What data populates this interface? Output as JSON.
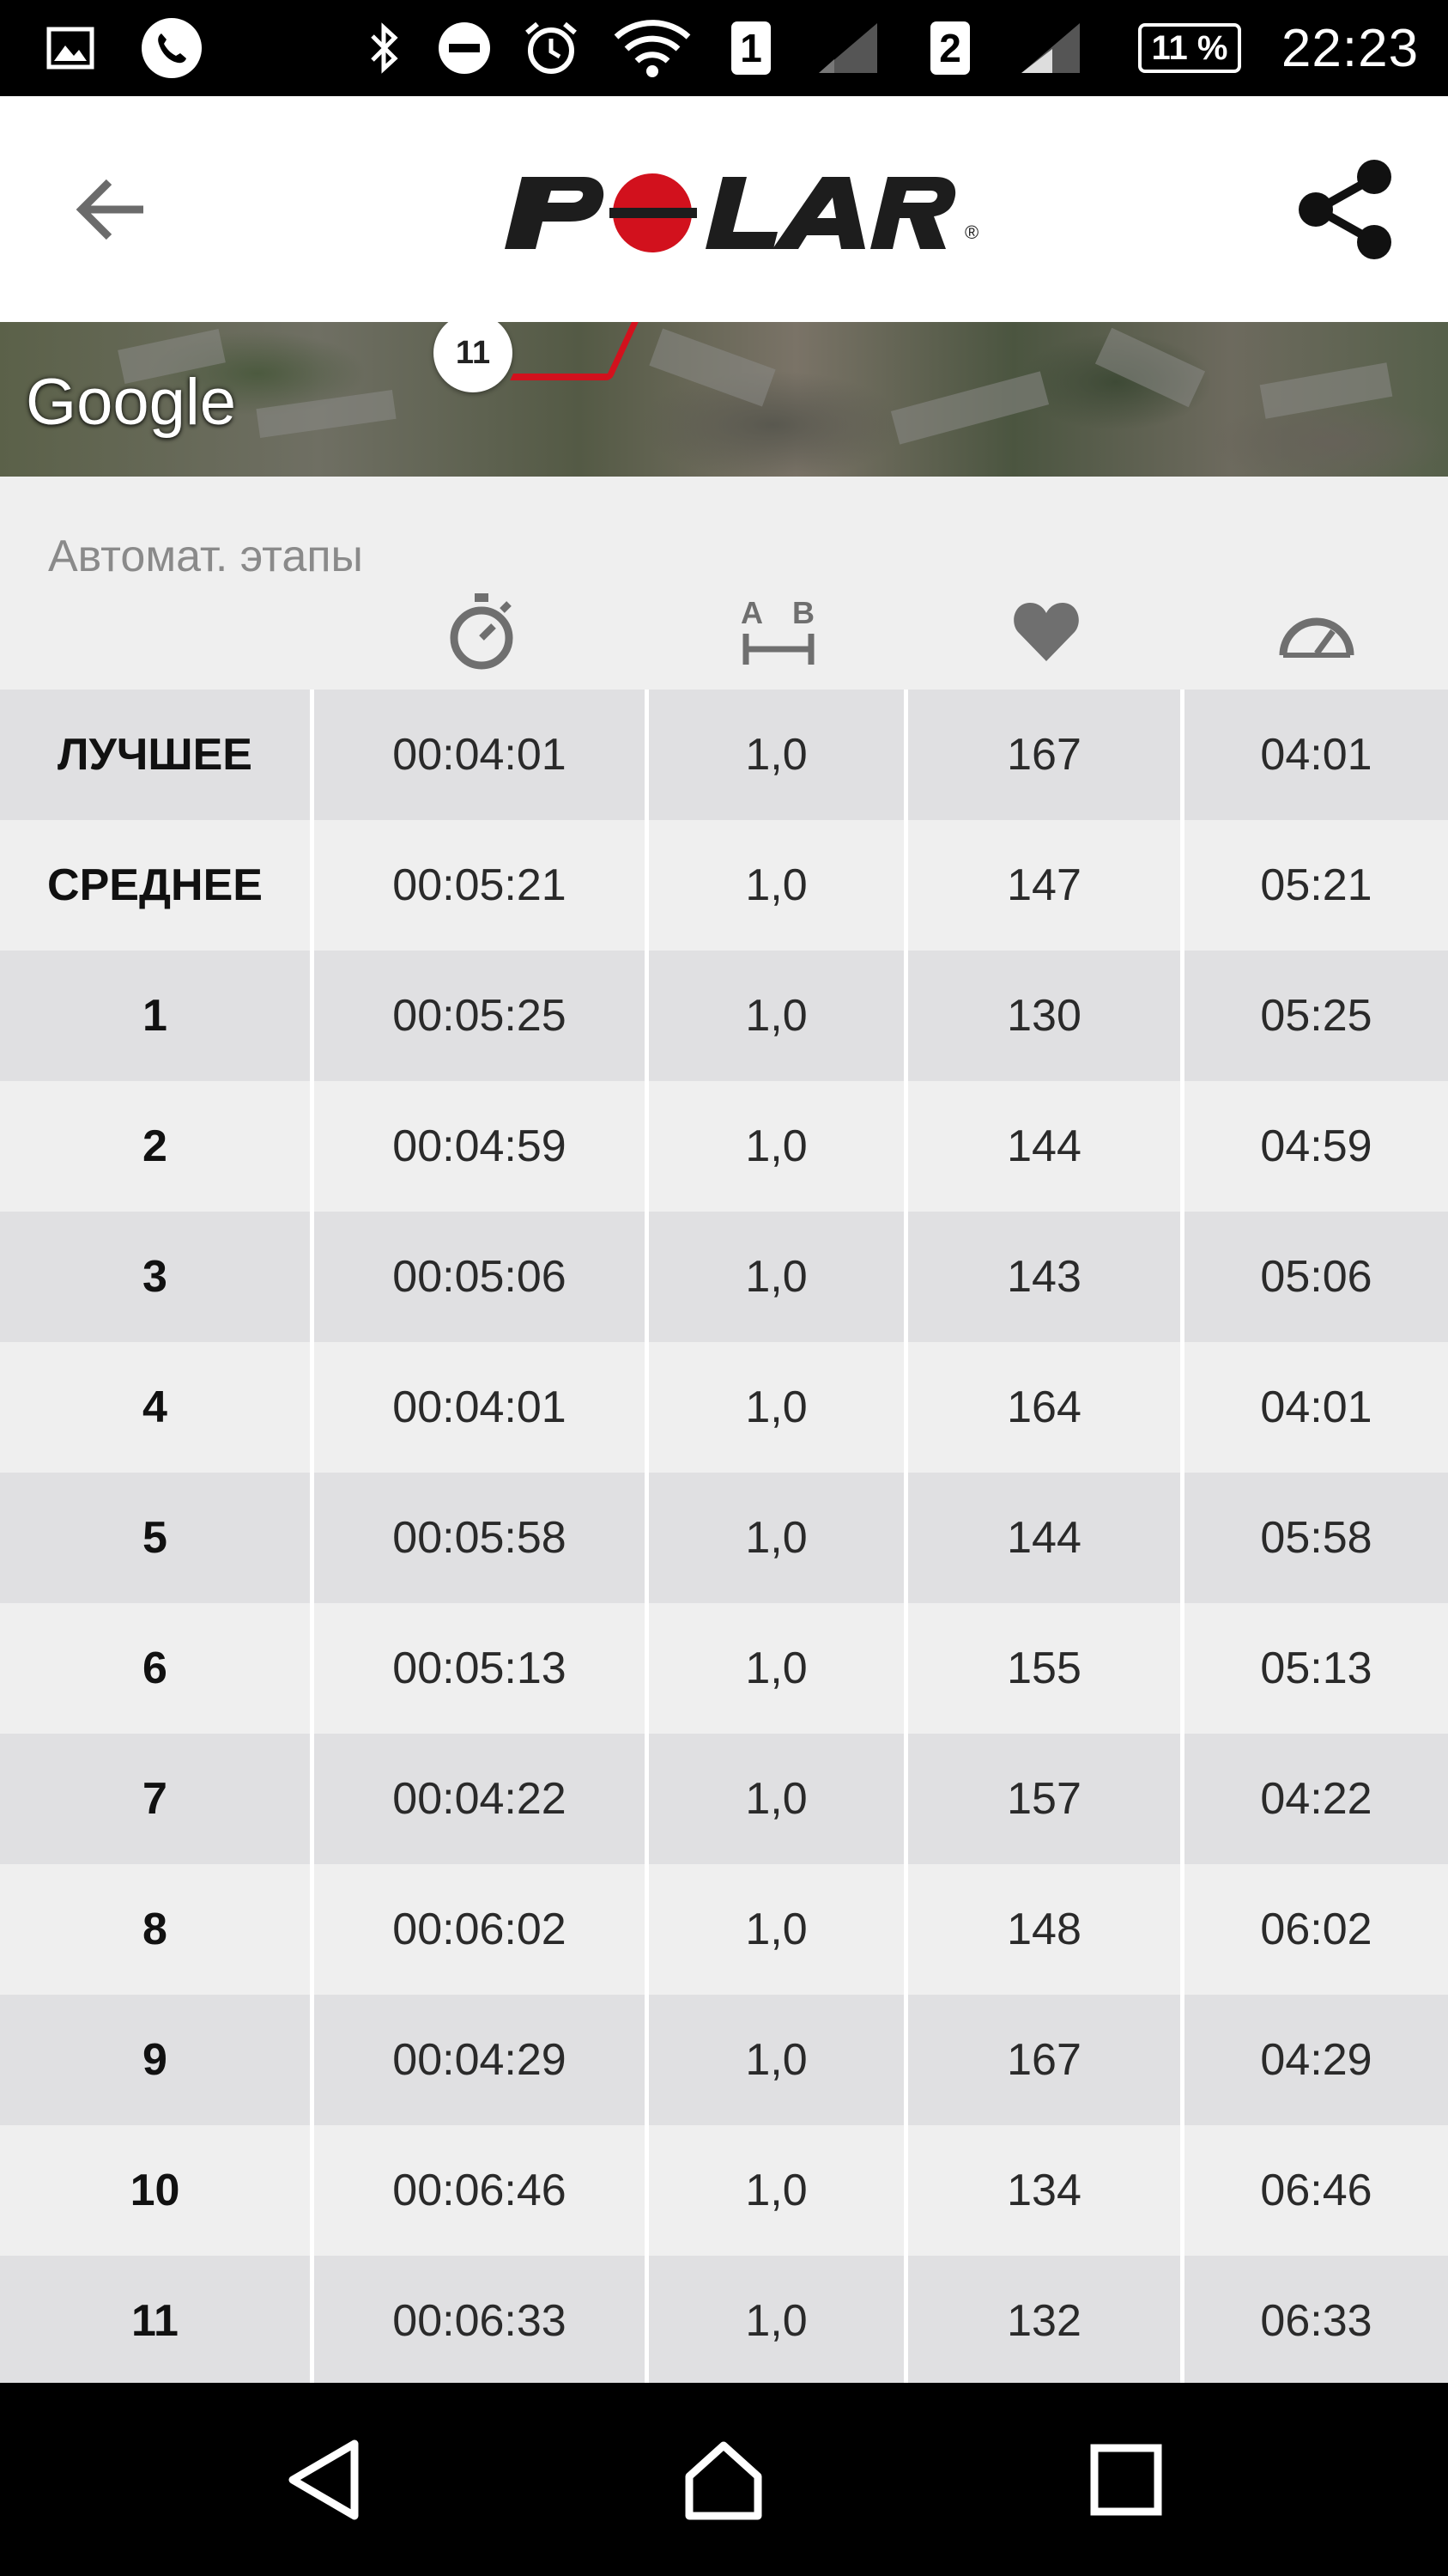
{
  "status_bar": {
    "sim1": "1",
    "sim2": "2",
    "battery": "11 %",
    "time": "22:23",
    "icons": [
      "image-icon",
      "phone-icon",
      "bluetooth-icon",
      "do-not-disturb-icon",
      "alarm-icon",
      "wifi-icon",
      "signal-icon",
      "signal-icon"
    ]
  },
  "header": {
    "logo": "POLAR",
    "logo_mark": "®"
  },
  "map": {
    "marker_label": "11",
    "attribution": "Google",
    "route_color": "#d2111d"
  },
  "laps": {
    "title": "Автомат. этапы",
    "column_icons": [
      "stopwatch-icon",
      "distance-icon",
      "heart-rate-icon",
      "speedometer-icon"
    ],
    "rows": [
      {
        "label": "ЛУЧШЕЕ",
        "time": "00:04:01",
        "distance": "1,0",
        "hr": "167",
        "pace": "04:01"
      },
      {
        "label": "СРЕДНЕЕ",
        "time": "00:05:21",
        "distance": "1,0",
        "hr": "147",
        "pace": "05:21"
      },
      {
        "label": "1",
        "time": "00:05:25",
        "distance": "1,0",
        "hr": "130",
        "pace": "05:25"
      },
      {
        "label": "2",
        "time": "00:04:59",
        "distance": "1,0",
        "hr": "144",
        "pace": "04:59"
      },
      {
        "label": "3",
        "time": "00:05:06",
        "distance": "1,0",
        "hr": "143",
        "pace": "05:06"
      },
      {
        "label": "4",
        "time": "00:04:01",
        "distance": "1,0",
        "hr": "164",
        "pace": "04:01"
      },
      {
        "label": "5",
        "time": "00:05:58",
        "distance": "1,0",
        "hr": "144",
        "pace": "05:58"
      },
      {
        "label": "6",
        "time": "00:05:13",
        "distance": "1,0",
        "hr": "155",
        "pace": "05:13"
      },
      {
        "label": "7",
        "time": "00:04:22",
        "distance": "1,0",
        "hr": "157",
        "pace": "04:22"
      },
      {
        "label": "8",
        "time": "00:06:02",
        "distance": "1,0",
        "hr": "148",
        "pace": "06:02"
      },
      {
        "label": "9",
        "time": "00:04:29",
        "distance": "1,0",
        "hr": "167",
        "pace": "04:29"
      },
      {
        "label": "10",
        "time": "00:06:46",
        "distance": "1,0",
        "hr": "134",
        "pace": "06:46"
      },
      {
        "label": "11",
        "time": "00:06:33",
        "distance": "1,0",
        "hr": "132",
        "pace": "06:33"
      }
    ]
  },
  "colors": {
    "brand_red": "#d2111d",
    "row_dark": "#e0e0e2",
    "row_light": "#efefef"
  }
}
